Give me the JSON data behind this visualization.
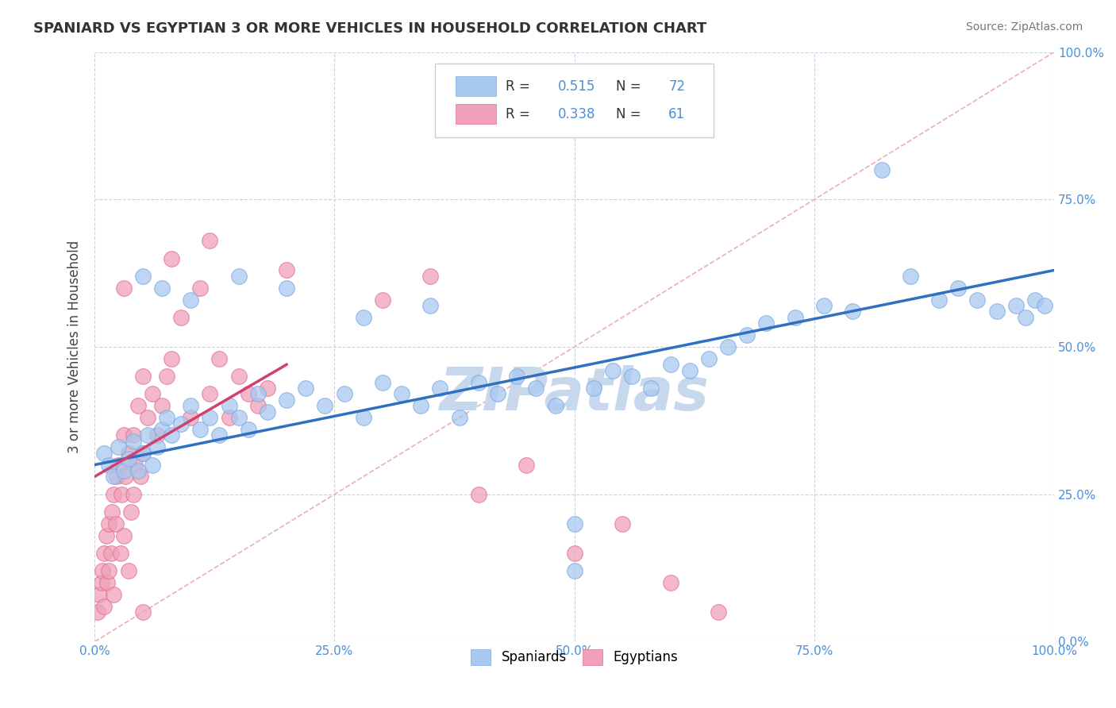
{
  "title": "SPANIARD VS EGYPTIAN 3 OR MORE VEHICLES IN HOUSEHOLD CORRELATION CHART",
  "source": "Source: ZipAtlas.com",
  "ylabel": "3 or more Vehicles in Household",
  "xlim": [
    0,
    100
  ],
  "ylim": [
    0,
    100
  ],
  "xticks": [
    0,
    25,
    50,
    75,
    100
  ],
  "yticks": [
    0,
    25,
    50,
    75,
    100
  ],
  "xtick_labels": [
    "0.0%",
    "25.0%",
    "50.0%",
    "75.0%",
    "100.0%"
  ],
  "ytick_labels_right": [
    "0.0%",
    "25.0%",
    "50.0%",
    "75.0%",
    "100.0%"
  ],
  "spaniard_color": "#A8C8F0",
  "egyptian_color": "#F0A0B8",
  "spaniard_edge": "#7AABDF",
  "egyptian_edge": "#E07090",
  "spaniard_R": 0.515,
  "spaniard_N": 72,
  "egyptian_R": 0.338,
  "egyptian_N": 61,
  "trend_blue": "#3070C0",
  "trend_pink": "#D04070",
  "watermark": "ZIPatlas",
  "watermark_color": "#C8D8EC",
  "background_color": "#FFFFFF",
  "grid_color": "#C8D4E0",
  "spaniard_x": [
    1.0,
    1.5,
    2.0,
    2.5,
    3.0,
    3.5,
    4.0,
    4.5,
    5.0,
    5.5,
    6.0,
    6.5,
    7.0,
    7.5,
    8.0,
    9.0,
    10.0,
    11.0,
    12.0,
    13.0,
    14.0,
    15.0,
    16.0,
    17.0,
    18.0,
    20.0,
    22.0,
    24.0,
    26.0,
    28.0,
    30.0,
    32.0,
    34.0,
    36.0,
    38.0,
    40.0,
    42.0,
    44.0,
    46.0,
    48.0,
    50.0,
    52.0,
    54.0,
    56.0,
    58.0,
    60.0,
    62.0,
    64.0,
    66.0,
    68.0,
    70.0,
    73.0,
    76.0,
    79.0,
    82.0,
    85.0,
    88.0,
    90.0,
    92.0,
    94.0,
    96.0,
    97.0,
    98.0,
    99.0,
    5.0,
    7.0,
    10.0,
    15.0,
    20.0,
    28.0,
    35.0,
    50.0
  ],
  "spaniard_y": [
    32.0,
    30.0,
    28.0,
    33.0,
    29.0,
    31.0,
    34.0,
    29.0,
    32.0,
    35.0,
    30.0,
    33.0,
    36.0,
    38.0,
    35.0,
    37.0,
    40.0,
    36.0,
    38.0,
    35.0,
    40.0,
    38.0,
    36.0,
    42.0,
    39.0,
    41.0,
    43.0,
    40.0,
    42.0,
    38.0,
    44.0,
    42.0,
    40.0,
    43.0,
    38.0,
    44.0,
    42.0,
    45.0,
    43.0,
    40.0,
    20.0,
    43.0,
    46.0,
    45.0,
    43.0,
    47.0,
    46.0,
    48.0,
    50.0,
    52.0,
    54.0,
    55.0,
    57.0,
    56.0,
    80.0,
    62.0,
    58.0,
    60.0,
    58.0,
    56.0,
    57.0,
    55.0,
    58.0,
    57.0,
    62.0,
    60.0,
    58.0,
    62.0,
    60.0,
    55.0,
    57.0,
    12.0
  ],
  "egyptian_x": [
    0.3,
    0.5,
    0.7,
    0.8,
    1.0,
    1.0,
    1.2,
    1.3,
    1.5,
    1.5,
    1.7,
    1.8,
    2.0,
    2.0,
    2.2,
    2.3,
    2.5,
    2.7,
    2.8,
    3.0,
    3.0,
    3.2,
    3.5,
    3.5,
    3.8,
    4.0,
    4.0,
    4.2,
    4.5,
    4.8,
    5.0,
    5.0,
    5.5,
    6.0,
    6.5,
    7.0,
    7.5,
    8.0,
    9.0,
    10.0,
    11.0,
    12.0,
    13.0,
    14.0,
    15.0,
    16.0,
    17.0,
    18.0,
    5.0,
    40.0,
    45.0,
    50.0,
    55.0,
    60.0,
    65.0,
    3.0,
    8.0,
    12.0,
    20.0,
    30.0,
    35.0
  ],
  "egyptian_y": [
    5.0,
    8.0,
    10.0,
    12.0,
    15.0,
    6.0,
    18.0,
    10.0,
    20.0,
    12.0,
    15.0,
    22.0,
    8.0,
    25.0,
    20.0,
    28.0,
    30.0,
    15.0,
    25.0,
    35.0,
    18.0,
    28.0,
    12.0,
    32.0,
    22.0,
    35.0,
    25.0,
    30.0,
    40.0,
    28.0,
    45.0,
    32.0,
    38.0,
    42.0,
    35.0,
    40.0,
    45.0,
    48.0,
    55.0,
    38.0,
    60.0,
    42.0,
    48.0,
    38.0,
    45.0,
    42.0,
    40.0,
    43.0,
    5.0,
    25.0,
    30.0,
    15.0,
    20.0,
    10.0,
    5.0,
    60.0,
    65.0,
    68.0,
    63.0,
    58.0,
    62.0
  ],
  "spaniard_trend_x": [
    0,
    100
  ],
  "spaniard_trend_y": [
    30.0,
    63.0
  ],
  "egyptian_trend_x": [
    0,
    20
  ],
  "egyptian_trend_y": [
    28.0,
    47.0
  ]
}
